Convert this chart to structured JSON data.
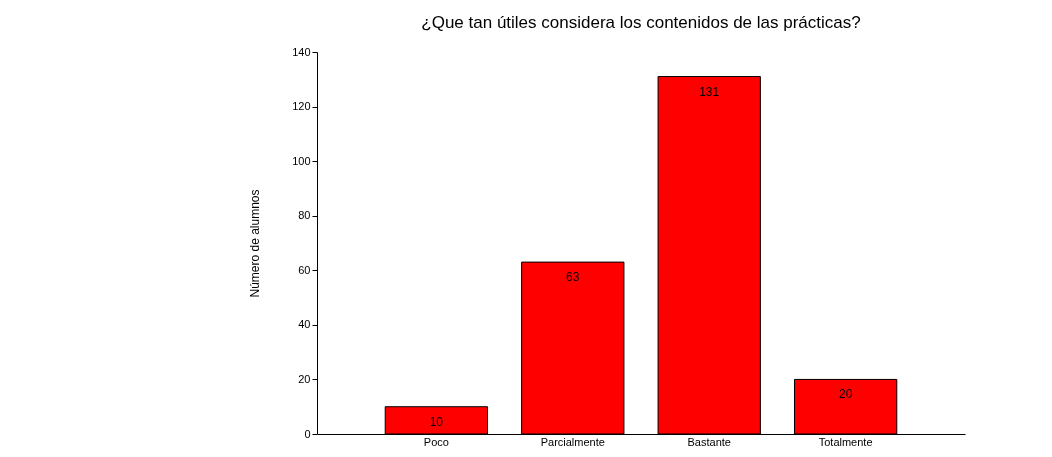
{
  "chart_data": {
    "type": "bar",
    "title": "¿Que tan útiles considera los contenidos de las prácticas?",
    "ylabel": "Número de alumnos",
    "categories": [
      "Poco",
      "Parcialmente",
      "Bastante",
      "Totalmente"
    ],
    "values": [
      10,
      63,
      131,
      20
    ],
    "color": "#ff0000",
    "ylim": [
      0,
      140
    ],
    "yticks": [
      0,
      20,
      40,
      60,
      80,
      100,
      120,
      140
    ],
    "grid": false,
    "data_labels": true
  }
}
